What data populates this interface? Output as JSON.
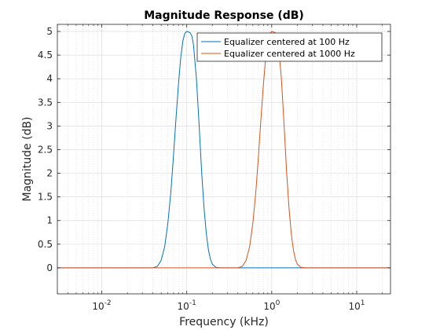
{
  "chart_data": {
    "type": "line",
    "title": "Magnitude Response (dB)",
    "xlabel": "Frequency (kHz)",
    "ylabel": "Magnitude (dB)",
    "xscale": "log",
    "xlim": [
      0.003,
      25
    ],
    "ylim": [
      -0.55,
      5.15
    ],
    "grid": "on",
    "minor_grid": "on",
    "legend_location": "top-right",
    "yticks": [
      0,
      0.5,
      1,
      1.5,
      2,
      2.5,
      3,
      3.5,
      4,
      4.5,
      5
    ],
    "ytick_labels": [
      "0",
      "0.5",
      "1",
      "1.5",
      "2",
      "2.5",
      "3",
      "3.5",
      "4",
      "4.5",
      "5"
    ],
    "xticks": [
      0.01,
      0.1,
      1,
      10
    ],
    "xtick_labels": [
      {
        "base": "10",
        "exp": "-2"
      },
      {
        "base": "10",
        "exp": "-1"
      },
      {
        "base": "10",
        "exp": "0"
      },
      {
        "base": "10",
        "exp": "1"
      }
    ],
    "series": [
      {
        "name": "Equalizer centered at 100 Hz",
        "color": "#0072BD",
        "x": [
          0.003,
          0.04,
          0.045,
          0.05,
          0.055,
          0.06,
          0.065,
          0.07,
          0.075,
          0.08,
          0.085,
          0.09,
          0.095,
          0.1,
          0.105,
          0.11,
          0.115,
          0.12,
          0.13,
          0.14,
          0.15,
          0.16,
          0.17,
          0.18,
          0.19,
          0.2,
          0.22,
          0.25,
          25
        ],
        "y": [
          0,
          0,
          0.03,
          0.16,
          0.45,
          0.95,
          1.6,
          2.4,
          3.2,
          3.9,
          4.45,
          4.8,
          4.96,
          5.0,
          4.99,
          4.97,
          4.9,
          4.72,
          4.0,
          3.0,
          2.0,
          1.25,
          0.72,
          0.38,
          0.18,
          0.08,
          0.01,
          0,
          0
        ]
      },
      {
        "name": "Equalizer centered at 1000 Hz",
        "color": "#D95319",
        "x": [
          0.003,
          0.4,
          0.45,
          0.5,
          0.55,
          0.6,
          0.65,
          0.7,
          0.75,
          0.8,
          0.85,
          0.9,
          0.95,
          1.0,
          1.05,
          1.1,
          1.15,
          1.2,
          1.3,
          1.4,
          1.5,
          1.6,
          1.7,
          1.8,
          1.9,
          2.0,
          2.2,
          2.5,
          25
        ],
        "y": [
          0,
          0,
          0.03,
          0.16,
          0.45,
          0.95,
          1.6,
          2.4,
          3.2,
          3.9,
          4.45,
          4.8,
          4.96,
          5.0,
          4.99,
          4.97,
          4.9,
          4.72,
          4.0,
          3.0,
          2.0,
          1.25,
          0.72,
          0.38,
          0.18,
          0.08,
          0.01,
          0,
          0
        ]
      }
    ]
  }
}
